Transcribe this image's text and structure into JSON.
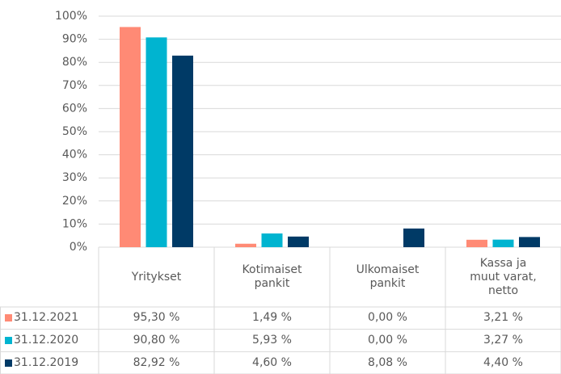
{
  "chart_data": {
    "type": "bar",
    "categories": [
      "Yritykset",
      "Kotimaiset pankit",
      "Ulkomaiset pankit",
      "Kassa ja muut varat, netto"
    ],
    "series": [
      {
        "name": "31.12.2021",
        "color": "#ff8a75",
        "values": [
          95.3,
          1.49,
          0.0,
          3.21
        ],
        "value_labels": [
          "95,30 %",
          "1,49 %",
          "0,00 %",
          "3,21 %"
        ]
      },
      {
        "name": "31.12.2020",
        "color": "#00b4d0",
        "values": [
          90.8,
          5.93,
          0.0,
          3.27
        ],
        "value_labels": [
          "90,80 %",
          "5,93 %",
          "0,00 %",
          "3,27 %"
        ]
      },
      {
        "name": "31.12.2019",
        "color": "#003a66",
        "values": [
          82.92,
          4.6,
          8.08,
          4.4
        ],
        "value_labels": [
          "82,92 %",
          "4,60 %",
          "8,08 %",
          "4,40 %"
        ]
      }
    ],
    "ylim": [
      0,
      100
    ],
    "yticks": [
      {
        "value": 0,
        "label": "0%"
      },
      {
        "value": 10,
        "label": "10%"
      },
      {
        "value": 20,
        "label": "20%"
      },
      {
        "value": 30,
        "label": "30%"
      },
      {
        "value": 40,
        "label": "40%"
      },
      {
        "value": 50,
        "label": "50%"
      },
      {
        "value": 60,
        "label": "60%"
      },
      {
        "value": 70,
        "label": "70%"
      },
      {
        "value": 80,
        "label": "80%"
      },
      {
        "value": 90,
        "label": "90%"
      },
      {
        "value": 100,
        "label": "100%"
      }
    ],
    "grid": true
  }
}
